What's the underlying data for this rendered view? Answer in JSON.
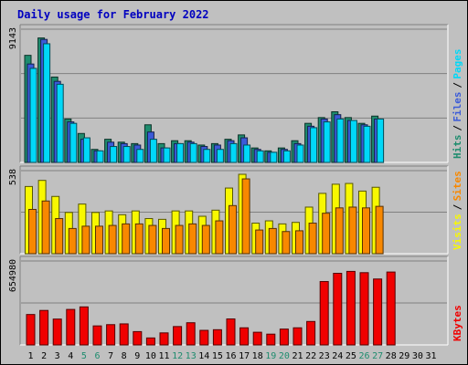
{
  "title": "Daily usage for February 2022",
  "colors": {
    "pages": "#1e8c6e",
    "files": "#3b5bd8",
    "hits": "#00d8f8",
    "visits": "#f8f800",
    "sites": "#f88800",
    "kbytes": "#f00000",
    "weekend_label": "#1e8c6e",
    "weekday_label": "#000000"
  },
  "chart_data": [
    {
      "type": "bar",
      "panel": "hits-files-pages",
      "max_label": "9143",
      "ylim": [
        0,
        9143
      ],
      "legend": [
        {
          "text": "Pages",
          "color": "#00d8f8"
        },
        {
          "text": "Files",
          "color": "#3b5bd8"
        },
        {
          "text": "Hits",
          "color": "#1e8c6e"
        }
      ],
      "series": [
        {
          "name": "Pages",
          "color": "#1e8c6e",
          "values": [
            7400,
            8600,
            5900,
            3000,
            2000,
            900,
            1600,
            1400,
            1300,
            2600,
            1300,
            1500,
            1500,
            1200,
            1300,
            1600,
            1900,
            1000,
            800,
            1000,
            1500,
            2700,
            3100,
            3500,
            3100,
            2700,
            3200,
            0
          ]
        },
        {
          "name": "Files",
          "color": "#3b5bd8",
          "values": [
            6800,
            8500,
            5600,
            2800,
            1600,
            800,
            1400,
            1300,
            1200,
            2100,
            1000,
            1300,
            1400,
            1100,
            1200,
            1500,
            1700,
            900,
            700,
            900,
            1300,
            2500,
            3000,
            3300,
            2900,
            2600,
            3000,
            0
          ]
        },
        {
          "name": "Hits",
          "color": "#00d8f8",
          "values": [
            6500,
            8200,
            5400,
            2700,
            1700,
            800,
            1100,
            1100,
            900,
            1600,
            1000,
            1300,
            1300,
            900,
            900,
            1300,
            1200,
            800,
            700,
            800,
            1200,
            2400,
            2800,
            3000,
            2900,
            2500,
            3000,
            0
          ]
        }
      ]
    },
    {
      "type": "bar",
      "panel": "visits-sites",
      "max_label": "538",
      "ylim": [
        0,
        538
      ],
      "legend": [
        {
          "text": "Sites",
          "color": "#f88800"
        },
        {
          "text": "Visits",
          "color": "#f8f800"
        }
      ],
      "series": [
        {
          "name": "Visits",
          "color": "#f8f800",
          "values": [
            440,
            480,
            375,
            270,
            325,
            270,
            280,
            255,
            280,
            230,
            225,
            280,
            280,
            245,
            285,
            430,
            520,
            200,
            215,
            195,
            205,
            305,
            395,
            455,
            460,
            410,
            435,
            0
          ]
        },
        {
          "name": "Sites",
          "color": "#f88800",
          "values": [
            290,
            345,
            230,
            165,
            180,
            180,
            185,
            195,
            195,
            185,
            165,
            185,
            195,
            185,
            215,
            315,
            490,
            155,
            165,
            145,
            150,
            200,
            265,
            300,
            305,
            300,
            310,
            0
          ]
        }
      ]
    },
    {
      "type": "bar",
      "panel": "kbytes",
      "max_label": "654980",
      "ylim": [
        0,
        654980
      ],
      "legend": [
        {
          "text": "KBytes",
          "color": "#f00000"
        }
      ],
      "series": [
        {
          "name": "KBytes",
          "color": "#f00000",
          "values": [
            240000,
            272000,
            204000,
            280000,
            300000,
            150000,
            160000,
            166000,
            105000,
            55000,
            95000,
            145000,
            175000,
            115000,
            120000,
            205000,
            135000,
            100000,
            85000,
            125000,
            135000,
            185000,
            500000,
            565000,
            580000,
            570000,
            520000,
            575000
          ]
        }
      ]
    }
  ],
  "x_axis": {
    "labels": [
      "1",
      "2",
      "3",
      "4",
      "5",
      "6",
      "7",
      "8",
      "9",
      "10",
      "11",
      "12",
      "13",
      "14",
      "15",
      "16",
      "17",
      "18",
      "19",
      "20",
      "21",
      "22",
      "23",
      "24",
      "25",
      "26",
      "27",
      "28",
      "29",
      "30",
      "31"
    ],
    "weekend": [
      5,
      6,
      12,
      13,
      19,
      20,
      26,
      27
    ]
  }
}
